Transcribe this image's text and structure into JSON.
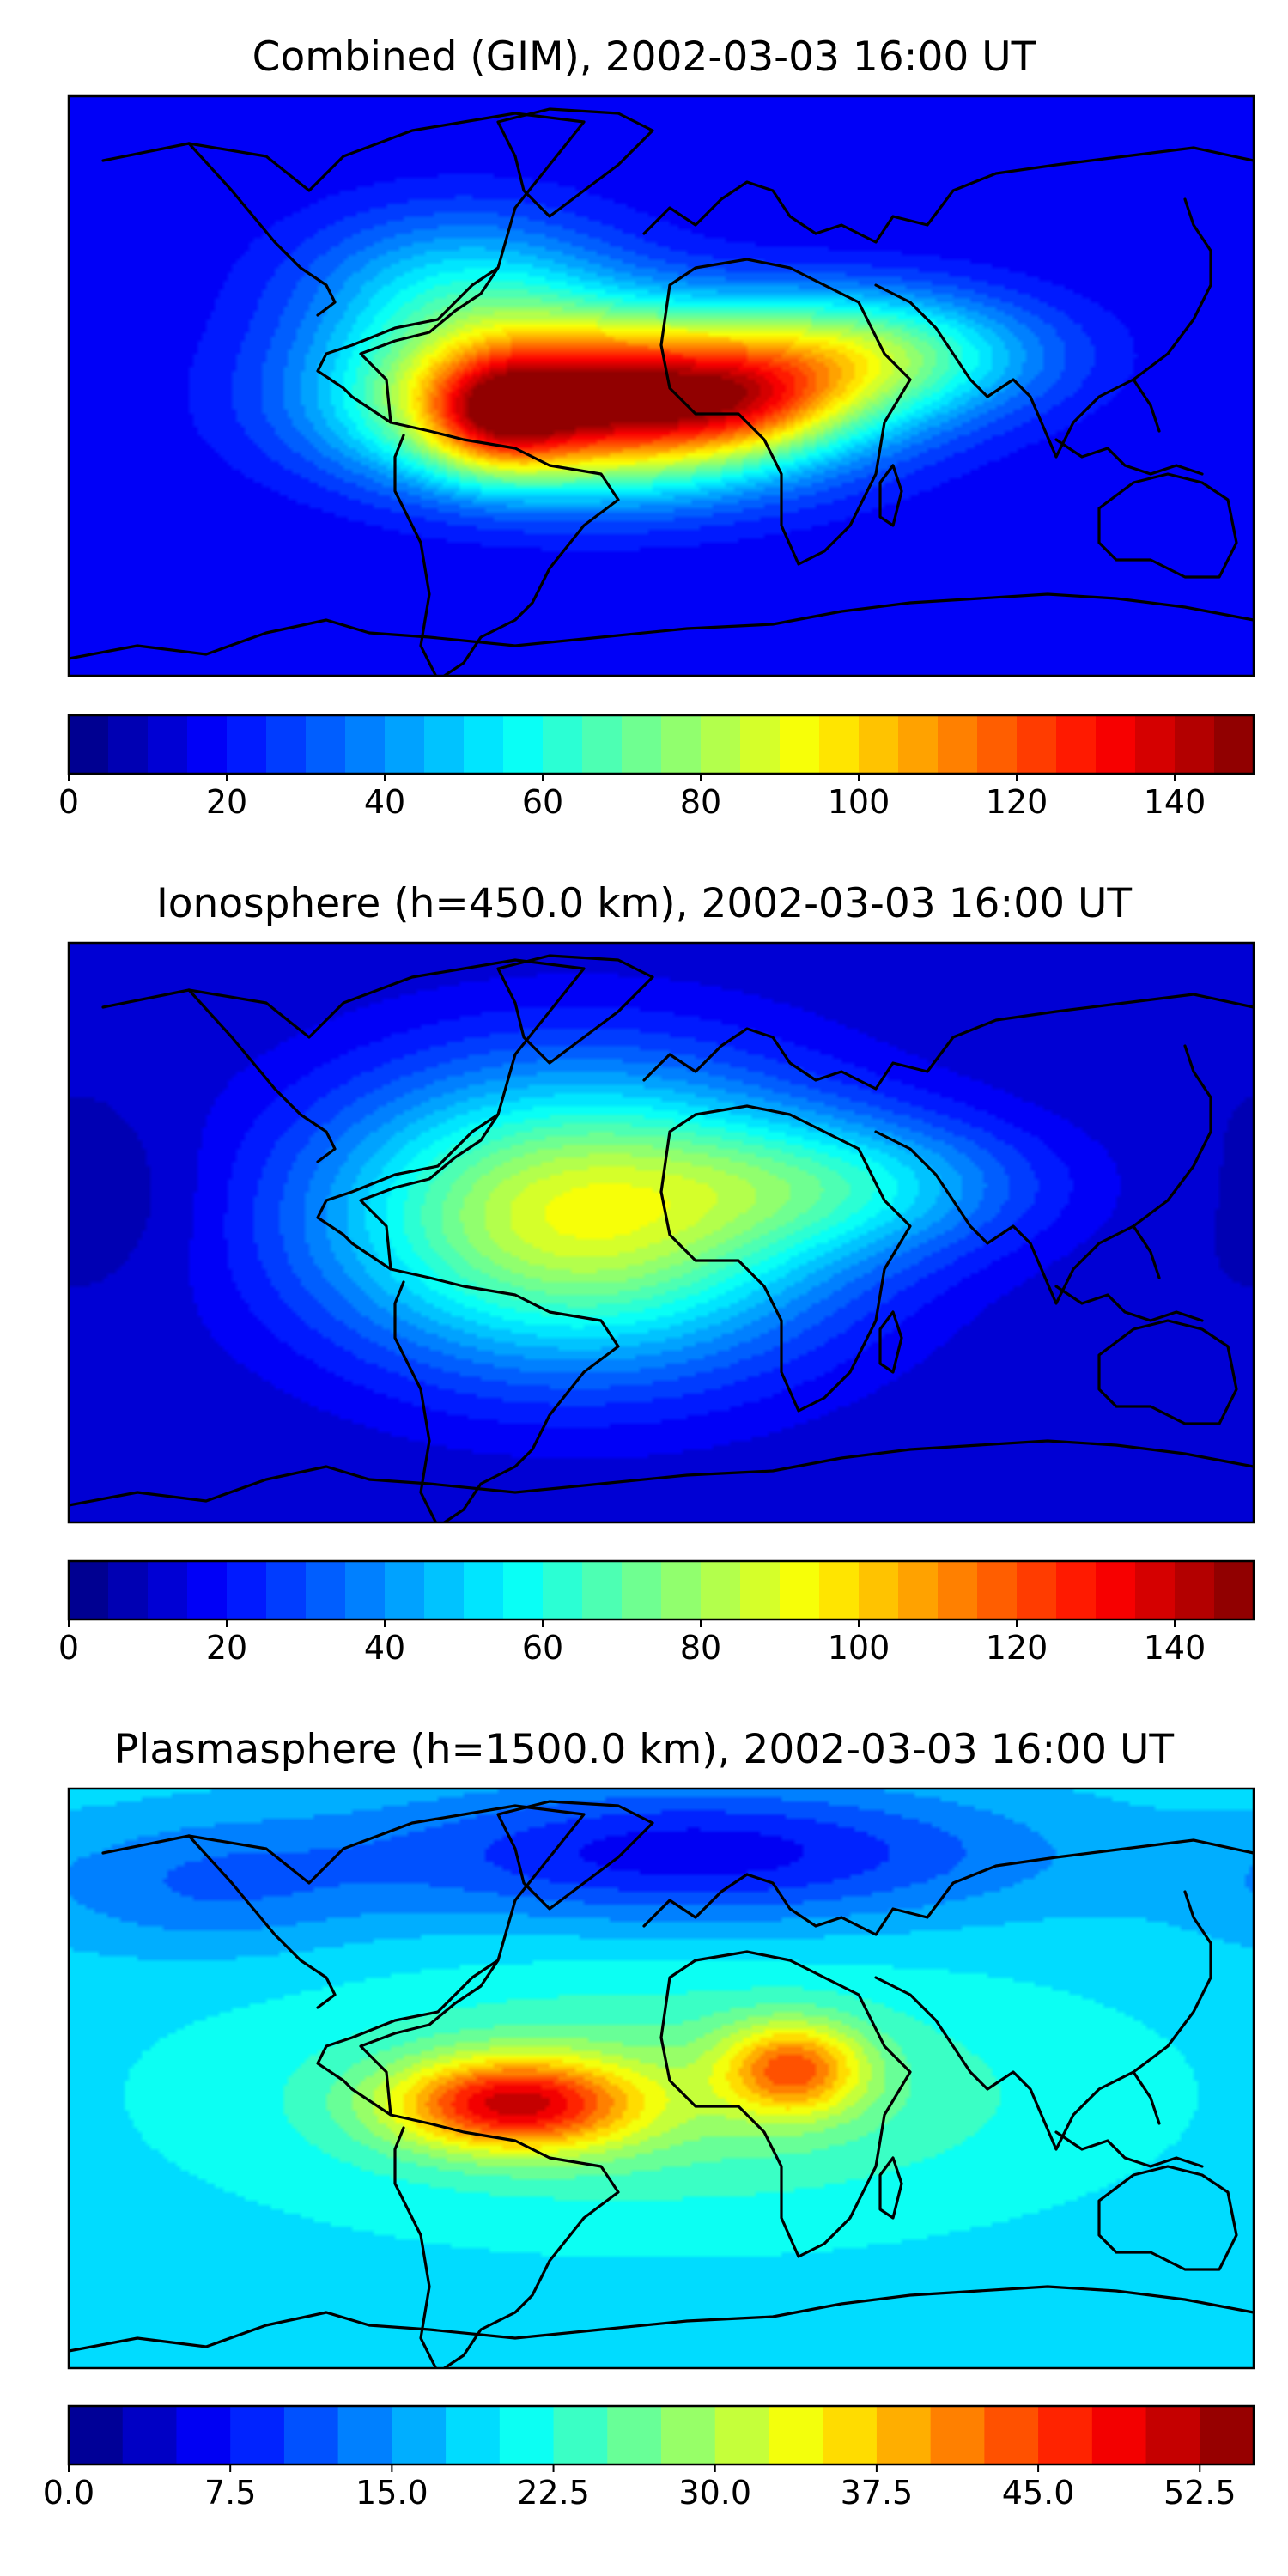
{
  "chart_data": [
    {
      "type": "heatmap",
      "title": "Combined (GIM), 2002-03-03 16:00 UT",
      "xlabel": "",
      "ylabel": "",
      "colormap": "jet",
      "colorbar": {
        "min": 0,
        "max": 150,
        "levels": 30,
        "ticks": [
          0,
          20,
          40,
          60,
          80,
          100,
          120,
          140
        ],
        "tick_labels": [
          "0",
          "20",
          "40",
          "60",
          "80",
          "100",
          "120",
          "140"
        ]
      },
      "field": {
        "background": 15,
        "peaks": [
          {
            "lon": -20,
            "lat": -5,
            "value": 130,
            "lon_sigma": 48,
            "lat_sigma": 18
          },
          {
            "lon": -50,
            "lat": -10,
            "value": 40,
            "lon_sigma": 15,
            "lat_sigma": 12
          },
          {
            "lon": 25,
            "lat": -6,
            "value": 25,
            "lon_sigma": 22,
            "lat_sigma": 10
          },
          {
            "lon": 60,
            "lat": 10,
            "value": 55,
            "lon_sigma": 38,
            "lat_sigma": 14
          },
          {
            "lon": -60,
            "lat": 30,
            "value": 35,
            "lon_sigma": 35,
            "lat_sigma": 18
          }
        ]
      }
    },
    {
      "type": "heatmap",
      "title": "Ionosphere  (h=450.0 km), 2002-03-03 16:00 UT",
      "xlabel": "",
      "ylabel": "",
      "colormap": "jet",
      "colorbar": {
        "min": 0,
        "max": 150,
        "levels": 30,
        "ticks": [
          0,
          20,
          40,
          60,
          80,
          100,
          120,
          140
        ],
        "tick_labels": [
          "0",
          "20",
          "40",
          "60",
          "80",
          "100",
          "120",
          "140"
        ]
      },
      "field": {
        "background": 10,
        "peaks": [
          {
            "lon": -25,
            "lat": 5,
            "value": 80,
            "lon_sigma": 55,
            "lat_sigma": 32
          },
          {
            "lon": 60,
            "lat": 15,
            "value": 30,
            "lon_sigma": 40,
            "lat_sigma": 15
          },
          {
            "lon": -160,
            "lat": 10,
            "value": -5,
            "lon_sigma": 20,
            "lat_sigma": 20
          }
        ]
      }
    },
    {
      "type": "heatmap",
      "title": "Plasmasphere (h=1500.0 km), 2002-03-03 16:00 UT",
      "xlabel": "",
      "ylabel": "",
      "colormap": "jet",
      "colorbar": {
        "min": 0.0,
        "max": 55.0,
        "levels": 22,
        "ticks": [
          0.0,
          7.5,
          15.0,
          22.5,
          30.0,
          37.5,
          45.0,
          52.5
        ],
        "tick_labels": [
          "0.0",
          "7.5",
          "15.0",
          "22.5",
          "30.0",
          "37.5",
          "45.0",
          "52.5"
        ]
      },
      "field": {
        "background": 19,
        "peaks": [
          {
            "lon": -45,
            "lat": -8,
            "value": 26,
            "lon_sigma": 26,
            "lat_sigma": 10
          },
          {
            "lon": 40,
            "lat": 3,
            "value": 19,
            "lon_sigma": 15,
            "lat_sigma": 10
          },
          {
            "lon": 0,
            "lat": -5,
            "value": 8,
            "lon_sigma": 80,
            "lat_sigma": 25
          },
          {
            "lon": 10,
            "lat": 70,
            "value": -13,
            "lon_sigma": 70,
            "lat_sigma": 15
          },
          {
            "lon": -140,
            "lat": 60,
            "value": -6,
            "lon_sigma": 40,
            "lat_sigma": 15
          }
        ]
      }
    }
  ]
}
